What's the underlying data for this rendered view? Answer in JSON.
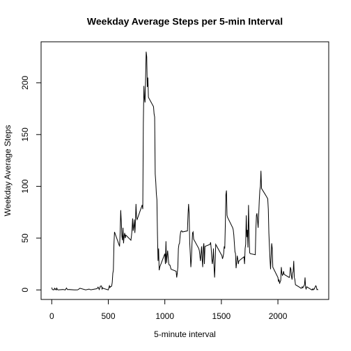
{
  "chart_data": {
    "type": "line",
    "title": "Weekday Average Steps per 5-min Interval",
    "x_label": "5-minute interval",
    "y_label": "Weekday Average Steps",
    "color": "#000000",
    "xlim": [
      -94.2,
      2449.2
    ],
    "ylim": [
      -9.22,
      239.6
    ],
    "xticks": [
      0,
      500,
      1000,
      1500,
      2000
    ],
    "yticks": [
      0,
      50,
      100,
      150,
      200
    ],
    "x": [
      0,
      5,
      10,
      15,
      20,
      25,
      30,
      35,
      40,
      45,
      50,
      55,
      100,
      110,
      120,
      130,
      140,
      150,
      200,
      215,
      230,
      250,
      300,
      330,
      345,
      400,
      410,
      420,
      430,
      440,
      445,
      450,
      455,
      500,
      505,
      510,
      515,
      520,
      525,
      530,
      535,
      540,
      545,
      550,
      555,
      600,
      605,
      610,
      615,
      620,
      625,
      630,
      635,
      640,
      645,
      650,
      655,
      700,
      705,
      710,
      715,
      720,
      725,
      730,
      735,
      740,
      745,
      750,
      755,
      800,
      805,
      810,
      815,
      820,
      825,
      830,
      835,
      840,
      845,
      850,
      855,
      900,
      905,
      910,
      915,
      920,
      925,
      930,
      935,
      940,
      945,
      950,
      955,
      1000,
      1005,
      1010,
      1015,
      1020,
      1025,
      1030,
      1035,
      1040,
      1045,
      1050,
      1055,
      1100,
      1105,
      1110,
      1115,
      1120,
      1125,
      1130,
      1135,
      1140,
      1145,
      1150,
      1155,
      1200,
      1205,
      1210,
      1215,
      1220,
      1225,
      1230,
      1235,
      1240,
      1245,
      1250,
      1255,
      1300,
      1305,
      1310,
      1315,
      1320,
      1325,
      1330,
      1335,
      1340,
      1345,
      1350,
      1355,
      1400,
      1405,
      1410,
      1415,
      1420,
      1425,
      1430,
      1435,
      1440,
      1445,
      1450,
      1455,
      1500,
      1505,
      1510,
      1515,
      1520,
      1525,
      1530,
      1535,
      1540,
      1545,
      1550,
      1555,
      1600,
      1605,
      1610,
      1615,
      1620,
      1625,
      1630,
      1635,
      1640,
      1645,
      1650,
      1655,
      1700,
      1705,
      1710,
      1715,
      1720,
      1725,
      1730,
      1735,
      1740,
      1745,
      1750,
      1755,
      1800,
      1805,
      1810,
      1815,
      1820,
      1825,
      1830,
      1835,
      1840,
      1845,
      1850,
      1855,
      1900,
      1905,
      1910,
      1915,
      1920,
      1925,
      1930,
      1935,
      1940,
      1945,
      1950,
      1955,
      2000,
      2005,
      2010,
      2015,
      2020,
      2025,
      2030,
      2035,
      2040,
      2045,
      2050,
      2055,
      2100,
      2105,
      2110,
      2115,
      2120,
      2125,
      2130,
      2135,
      2140,
      2145,
      2150,
      2155,
      2200,
      2205,
      2210,
      2215,
      2220,
      2225,
      2230,
      2235,
      2240,
      2245,
      2250,
      2255,
      2300,
      2305,
      2310,
      2315,
      2320,
      2325,
      2330,
      2335,
      2340,
      2345,
      2350,
      2355
    ],
    "values": [
      2.3,
      0.5,
      0.2,
      0.2,
      0.1,
      1.6,
      0.6,
      1.0,
      0,
      1.7,
      0.4,
      0,
      0.4,
      0.2,
      0,
      1.8,
      0.2,
      0.4,
      0,
      0,
      0.1,
      1.6,
      0,
      0.8,
      0.1,
      1.2,
      2.7,
      0.4,
      3.6,
      3.8,
      0.9,
      2.1,
      1.5,
      0,
      2.1,
      4.0,
      2.3,
      3.2,
      3.2,
      3.8,
      7.3,
      16,
      19,
      44,
      56,
      42,
      56,
      77,
      66,
      52,
      48,
      60,
      45,
      52,
      55,
      50,
      53,
      48,
      52,
      58,
      69,
      57,
      61,
      68,
      55,
      65,
      83,
      70,
      68,
      82,
      78,
      161,
      197,
      185,
      181,
      204,
      230,
      225,
      196,
      205,
      186,
      177,
      170,
      167,
      112,
      104,
      93,
      87,
      53,
      28,
      40,
      19,
      22,
      35,
      25,
      47,
      26,
      33,
      38,
      31,
      25,
      24,
      24,
      22,
      20,
      18,
      12,
      16,
      22,
      40,
      44,
      45,
      52,
      56,
      57,
      57,
      56,
      57,
      73,
      83,
      74,
      46,
      35,
      22,
      30,
      44,
      55,
      56,
      49,
      40,
      38,
      33,
      28,
      35,
      42,
      30,
      22,
      41,
      45,
      25,
      42,
      44,
      46,
      40,
      30,
      25,
      30,
      40,
      23,
      12,
      26,
      44,
      43,
      34,
      33,
      30,
      32,
      35,
      42,
      40,
      63,
      92,
      96,
      72,
      70,
      60,
      58,
      53,
      45,
      37,
      35,
      21,
      26,
      33,
      30,
      25,
      28,
      32,
      25,
      40,
      44,
      72,
      51,
      58,
      41,
      82,
      55,
      36,
      35,
      34,
      58,
      72,
      74,
      67,
      60,
      72,
      86,
      96,
      100,
      115,
      98,
      90,
      89,
      88,
      78,
      55,
      42,
      30,
      20,
      32,
      45,
      40,
      22,
      12,
      8,
      10,
      6,
      8,
      9,
      22,
      16,
      14,
      15,
      18,
      15,
      12,
      14,
      22,
      20,
      13,
      10,
      16,
      18,
      28,
      12,
      10,
      5,
      2,
      1.5,
      2,
      3,
      2,
      3,
      4,
      5,
      12,
      2,
      0.9,
      3,
      0,
      0.9,
      0,
      1,
      0.6,
      1.8,
      3,
      4,
      3,
      0.3,
      0.6,
      0
    ]
  }
}
